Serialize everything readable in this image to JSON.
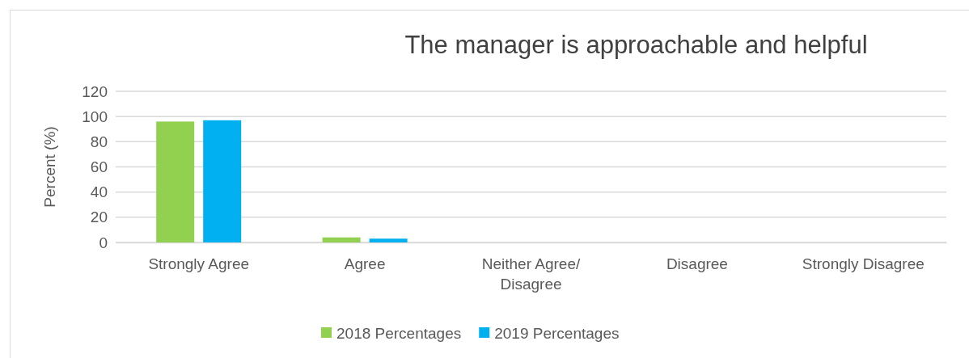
{
  "chart_data": {
    "type": "bar",
    "title": "The manager is approachable and helpful",
    "ylabel": "Percent (%)",
    "categories": [
      "Strongly Agree",
      "Agree",
      "Neither Agree/ Disagree",
      "Disagree",
      "Strongly Disagree"
    ],
    "series": [
      {
        "name": "2018 Percentages",
        "color": "#92d050",
        "values": [
          96,
          4,
          0,
          0,
          0
        ]
      },
      {
        "name": "2019 Percentages",
        "color": "#00b0f0",
        "values": [
          97,
          3,
          0,
          0,
          0
        ]
      }
    ],
    "ylim": [
      0,
      120
    ],
    "yticks": [
      0,
      20,
      40,
      60,
      80,
      100,
      120
    ],
    "grid": "y",
    "legend": "bottom"
  }
}
